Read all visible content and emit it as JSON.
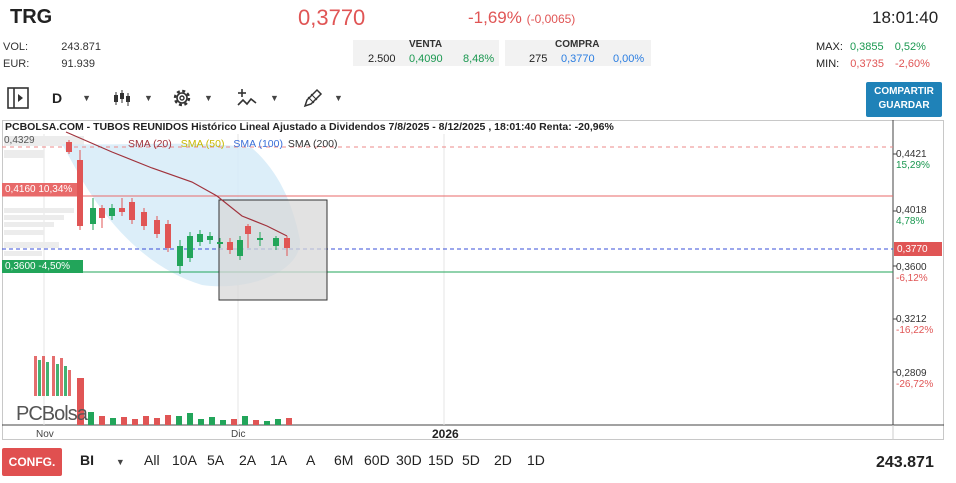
{
  "header": {
    "ticker": "TRG",
    "price": "0,3770",
    "change_pct": "-1,69%",
    "change_abs": "(-0,0065)",
    "time": "18:01:40"
  },
  "stats": {
    "vol_label": "VOL:",
    "vol_value": "243.871",
    "eur_label": "EUR:",
    "eur_value": "91.939"
  },
  "venta": {
    "header": "VENTA",
    "qty": "2.500",
    "price": "0,4090",
    "pct": "8,48%"
  },
  "compra": {
    "header": "COMPRA",
    "qty": "275",
    "price": "0,3770",
    "pct": "0,00%"
  },
  "max": {
    "label": "MAX:",
    "price": "0,3855",
    "pct": "0,52%"
  },
  "min": {
    "label": "MIN:",
    "price": "0,3735",
    "pct": "-2,60%"
  },
  "toolbar": {
    "period": "D",
    "share_line1": "COMPARTIR",
    "share_line2": "GUARDAR"
  },
  "chart": {
    "title": "PCBOLSA.COM - TUBOS REUNIDOS Histórico Lineal Ajustado a Dividendos 7/8/2025 - 8/12/2025 , 18:01:40 Renta: -20,96%",
    "legend": [
      "SMA (20)",
      "SMA (50)",
      "SMA (100)",
      "SMA (200)"
    ],
    "legend_colors": [
      "#a0323c",
      "#e6d800",
      "#3a6fd8",
      "#333333"
    ],
    "top_label": "0,4329",
    "resistance_label": "0,4160  10,34%",
    "support_label": "0,3600  -4,50%",
    "y_ticks": [
      {
        "price": "0,4421",
        "pct": "15,29%",
        "color": "#1a9850"
      },
      {
        "price": "0,4018",
        "pct": "4,78%",
        "color": "#1a9850"
      },
      {
        "price": "0,3600",
        "pct": "-6,12%",
        "color": "#e05555"
      },
      {
        "price": "0,3212",
        "pct": "-16,22%",
        "color": "#e05555"
      },
      {
        "price": "0,2809",
        "pct": "-26,72%",
        "color": "#e05555"
      }
    ],
    "current_price_tag": "0,3770",
    "x_labels": [
      "Nov",
      "Dic",
      "2026"
    ],
    "logo_text": "PCBolsa"
  },
  "footer": {
    "config_label": "CONFG.",
    "type_label": "BI",
    "ranges": [
      "All",
      "10A",
      "5A",
      "2A",
      "1A",
      "A",
      "6M",
      "60D",
      "30D",
      "15D",
      "5D",
      "2D",
      "1D"
    ],
    "volume": "243.871"
  }
}
